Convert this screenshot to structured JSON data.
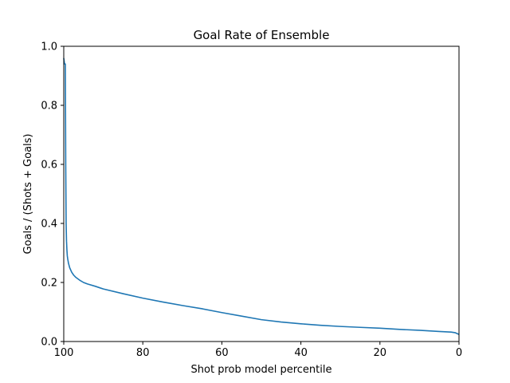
{
  "chart_data": {
    "type": "line",
    "title": "Goal Rate of Ensemble",
    "xlabel": "Shot prob model percentile",
    "ylabel": "Goals / (Shots + Goals)",
    "xlim": [
      100,
      0
    ],
    "ylim": [
      0.0,
      1.0
    ],
    "x_ticks": [
      100,
      80,
      60,
      40,
      20,
      0
    ],
    "x_tick_labels": [
      "100",
      "80",
      "60",
      "40",
      "20",
      "0"
    ],
    "y_ticks": [
      0.0,
      0.2,
      0.4,
      0.6,
      0.8,
      1.0
    ],
    "y_tick_labels": [
      "0.0",
      "0.2",
      "0.4",
      "0.6",
      "0.8",
      "1.0"
    ],
    "grid": false,
    "legend": "none",
    "series": [
      {
        "color": "#1f77b4",
        "x": [
          100,
          99.9,
          99.8,
          99.6,
          99.5,
          99.4,
          99.3,
          99.2,
          99.1,
          99.0,
          98.8,
          98.5,
          98.0,
          97.5,
          97.0,
          96.0,
          95.0,
          94.0,
          92.0,
          90.0,
          85.0,
          80.0,
          75.0,
          70.0,
          65.0,
          60.0,
          55.0,
          50.0,
          45.0,
          40.0,
          35.0,
          30.0,
          25.0,
          20.0,
          15.0,
          10.0,
          5.0,
          2.0,
          1.0,
          0.5,
          0.0
        ],
        "y": [
          0.96,
          0.95,
          0.94,
          0.94,
          0.6,
          0.4,
          0.34,
          0.31,
          0.29,
          0.28,
          0.265,
          0.25,
          0.235,
          0.225,
          0.218,
          0.208,
          0.2,
          0.195,
          0.187,
          0.178,
          0.162,
          0.147,
          0.134,
          0.122,
          0.111,
          0.098,
          0.086,
          0.074,
          0.066,
          0.06,
          0.055,
          0.051,
          0.048,
          0.045,
          0.041,
          0.038,
          0.034,
          0.032,
          0.03,
          0.027,
          0.024
        ]
      }
    ]
  }
}
